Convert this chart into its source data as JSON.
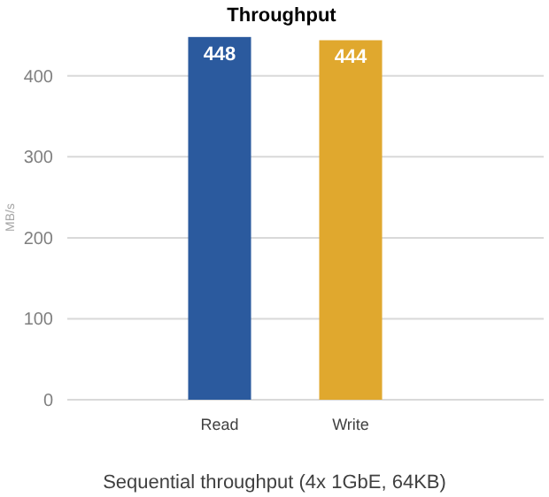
{
  "chart_data": {
    "type": "bar",
    "title": "Throughput",
    "xlabel": "Sequential throughput (4x 1GbE, 64KB)",
    "ylabel": "MB/s",
    "categories": [
      "Read",
      "Write"
    ],
    "values": [
      448,
      444
    ],
    "colors": [
      "#2b5a9e",
      "#e0a82e"
    ],
    "ylim": [
      0,
      450
    ],
    "yticks": [
      0,
      100,
      200,
      300,
      400
    ],
    "grid": "y",
    "data_labels": true
  }
}
